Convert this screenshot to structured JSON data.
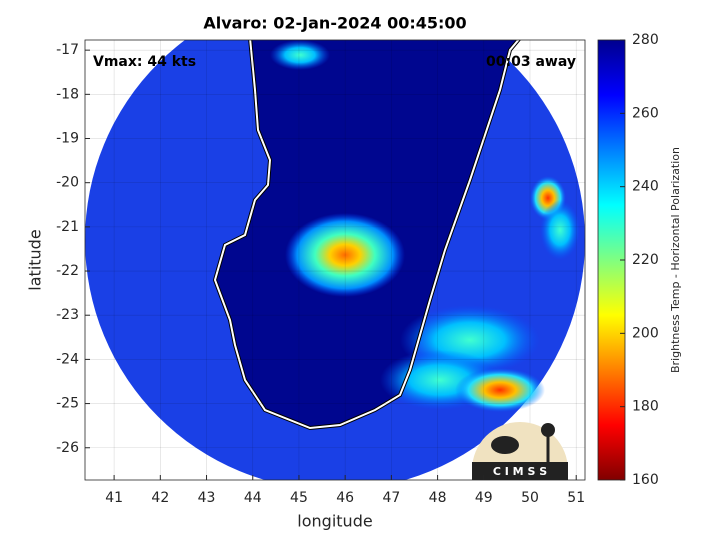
{
  "chart_data": {
    "type": "map",
    "title": "Alvaro: 02-Jan-2024 00:45:00",
    "annotations": [
      "Vmax: 44 kts",
      "00:03 away"
    ],
    "xlabel": "longitude",
    "ylabel": "latitude",
    "xlim": [
      40.37,
      51.19
    ],
    "xticks": [
      41,
      42,
      43,
      44,
      45,
      46,
      47,
      48,
      49,
      50,
      51
    ],
    "ylim": [
      -26.73,
      -16.77
    ],
    "yticks": [
      -17,
      -18,
      -19,
      -20,
      -21,
      -22,
      -23,
      -24,
      -25,
      -26
    ],
    "grid": true,
    "colorbar": {
      "label": "Brightness Temp - Horizontal Polarization",
      "lim": [
        160,
        280
      ],
      "ticks": [
        160,
        180,
        200,
        220,
        240,
        260,
        280
      ],
      "colors": [
        "#800000",
        "#ff0000",
        "#ff8000",
        "#ffff00",
        "#80ff80",
        "#00ffff",
        "#0080ff",
        "#0000ff",
        "#00008f"
      ]
    },
    "logo_text": "C I M S S"
  }
}
